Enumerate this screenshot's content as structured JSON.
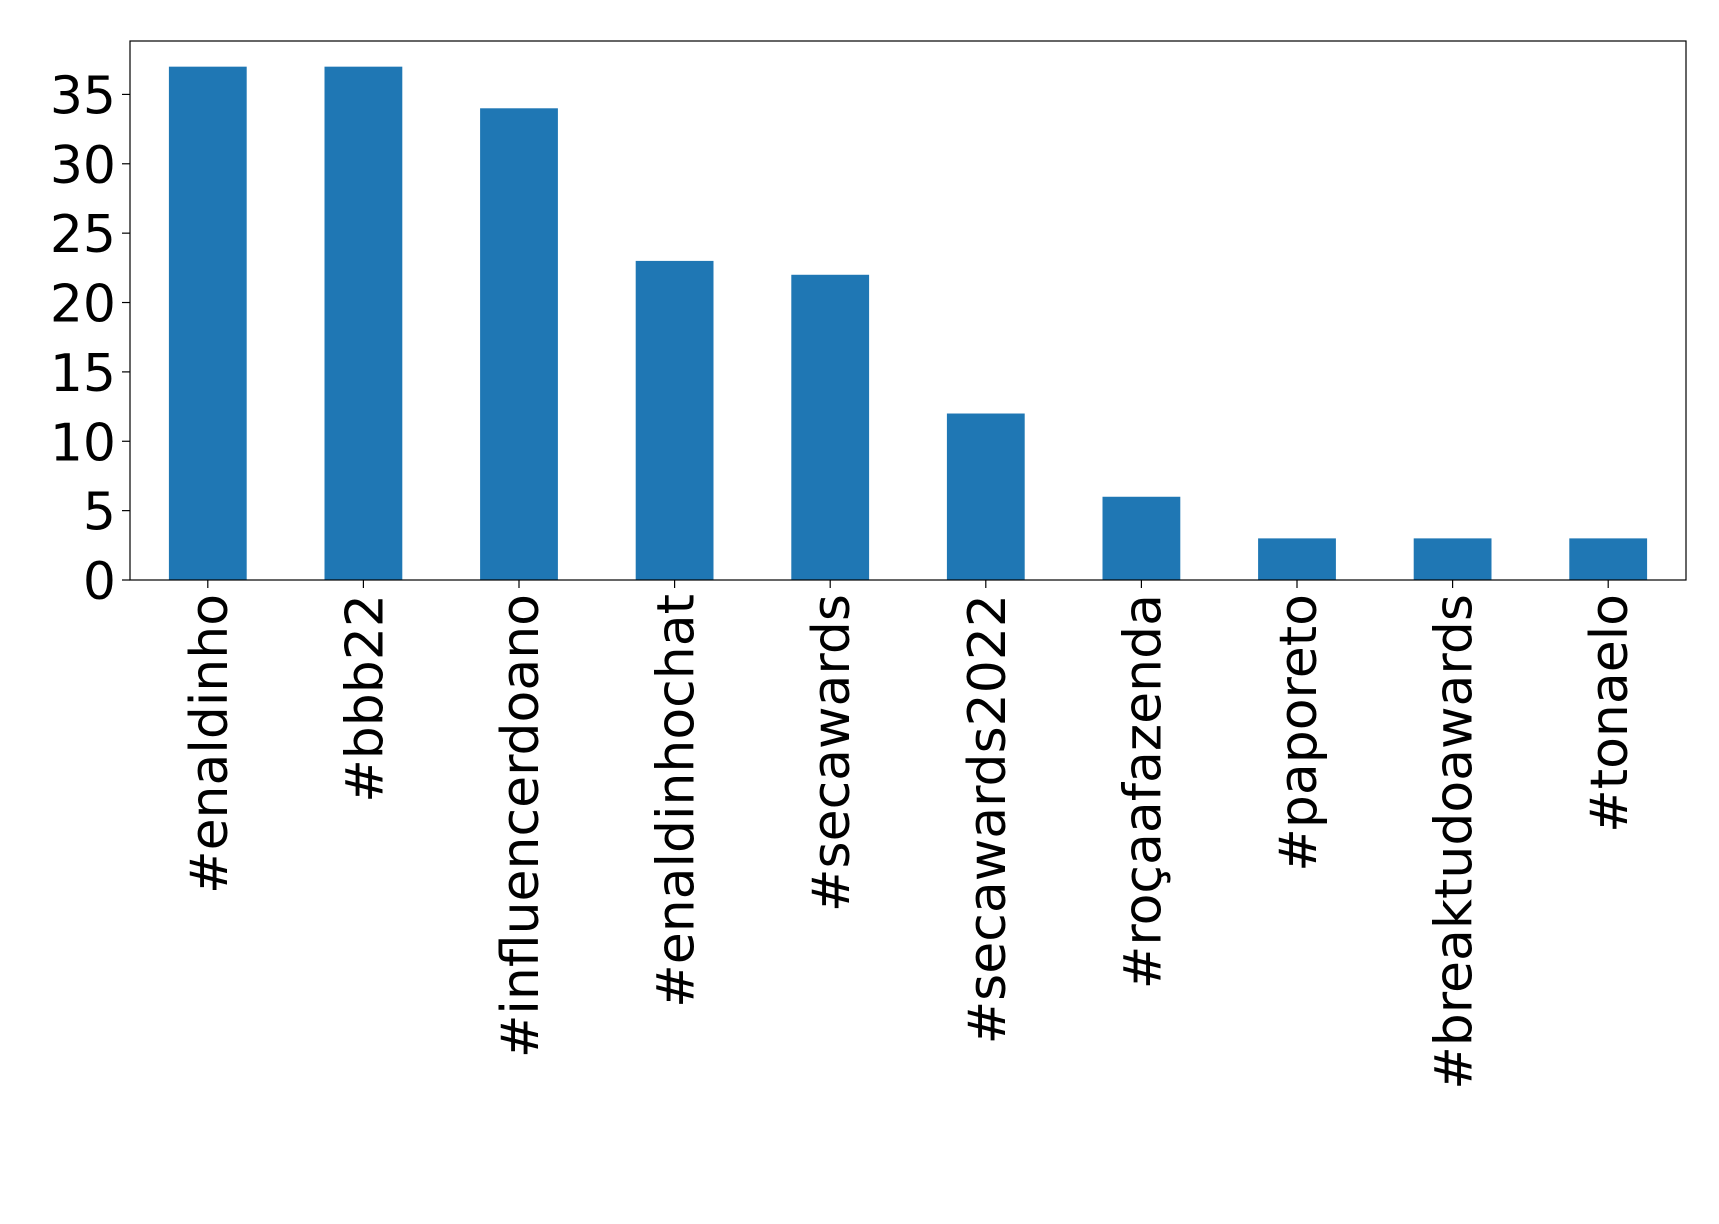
{
  "chart_data": {
    "type": "bar",
    "categories": [
      "#enaldinho",
      "#bbb22",
      "#influencerdoano",
      "#enaldinhochat",
      "#secawards",
      "#secawards2022",
      "#roçaafazenda",
      "#paporeto",
      "#breaktudoawards",
      "#tonaelo"
    ],
    "values": [
      37,
      37,
      34,
      23,
      22,
      12,
      6,
      3,
      3,
      3
    ],
    "color": "#1f77b4",
    "ylim": [
      0,
      38.85
    ],
    "yticks": [
      0,
      5,
      10,
      15,
      20,
      25,
      30,
      35
    ],
    "grid": false
  }
}
